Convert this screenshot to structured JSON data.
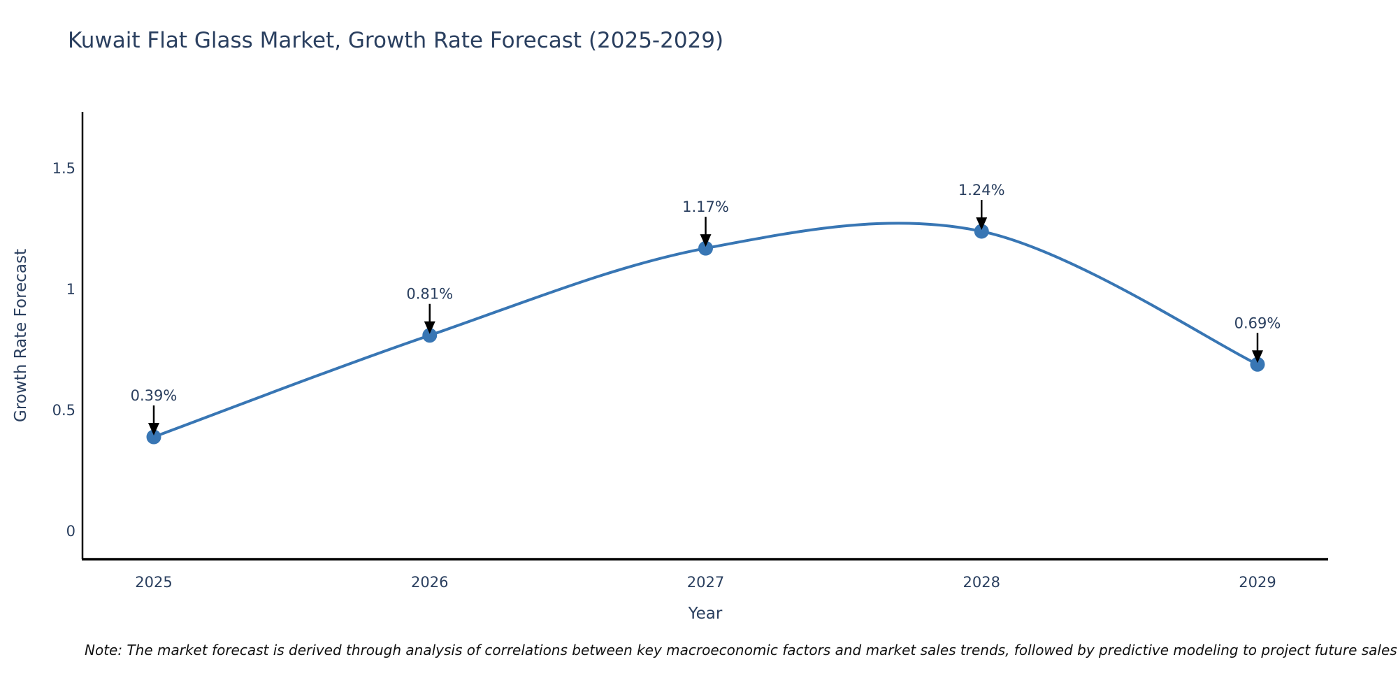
{
  "title": "Kuwait Flat Glass Market, Growth Rate Forecast (2025-2029)",
  "footnote": "Note: The market forecast is derived through analysis of correlations between key macroeconomic factors and market sales trends, followed by predictive modeling to project future sales",
  "chart_data": {
    "type": "line",
    "title": "Kuwait Flat Glass Market, Growth Rate Forecast (2025-2029)",
    "xlabel": "Year",
    "ylabel": "Growth Rate Forecast",
    "x": [
      2025,
      2026,
      2027,
      2028,
      2029
    ],
    "values": [
      0.39,
      0.81,
      1.17,
      1.24,
      0.69
    ],
    "point_labels": [
      "0.39%",
      "0.81%",
      "1.17%",
      "1.24%",
      "0.69%"
    ],
    "x_tick_labels": [
      "2025",
      "2026",
      "2027",
      "2028",
      "2029"
    ],
    "y_ticks": [
      0,
      0.5,
      1,
      1.5
    ],
    "y_tick_labels": [
      "0",
      "0.5",
      "1",
      "1.5"
    ],
    "ylim": [
      -0.12,
      1.85
    ],
    "line_shape": "spline",
    "grid": false,
    "legend_position": "none",
    "colors": {
      "line": "#3876b4",
      "marker": "#3876b4",
      "axis": "#000000",
      "text": "#2a3f5f",
      "annotation_text": "#2a3f5f",
      "annotation_arrow": "#000000",
      "background": "#ffffff"
    }
  }
}
